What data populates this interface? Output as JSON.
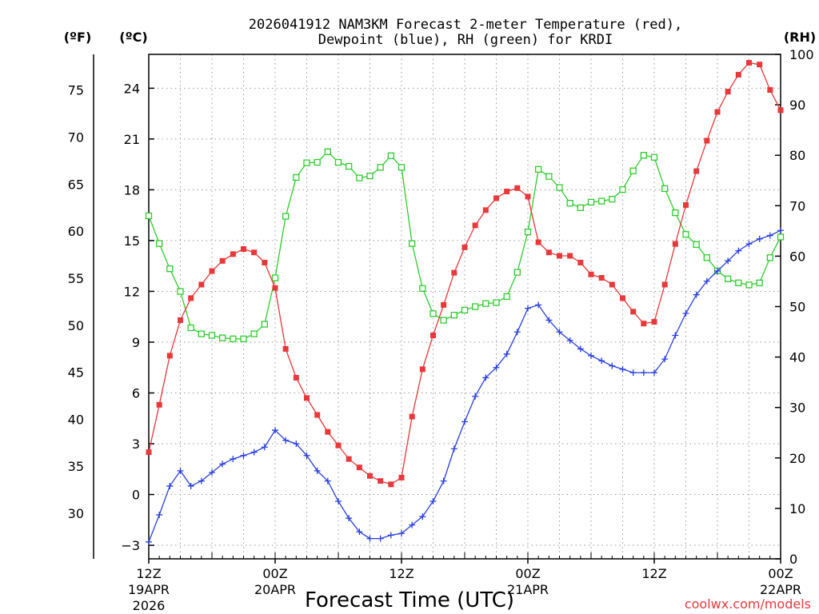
{
  "chart_data": {
    "type": "line",
    "title_line1": "2026041912 NAM3KM Forecast 2-meter Temperature (red),",
    "title_line2": "Dewpoint (blue), RH (green) for KRDI",
    "xlabel": "Forecast Time (UTC)",
    "credit": "coolwx.com/models",
    "unit_f": "(ºF)",
    "unit_c": "(ºC)",
    "unit_rh": "(RH)",
    "xlim_hours": [
      0,
      60
    ],
    "ylim_c": [
      -3.8,
      26.0
    ],
    "ylim_rh": [
      0,
      100
    ],
    "grid": true,
    "x_ticks": [
      {
        "hour": 0,
        "line1": "12Z",
        "line2": "19APR",
        "line3": "2026"
      },
      {
        "hour": 12,
        "line1": "00Z",
        "line2": "20APR",
        "line3": ""
      },
      {
        "hour": 24,
        "line1": "12Z",
        "line2": "",
        "line3": ""
      },
      {
        "hour": 36,
        "line1": "00Z",
        "line2": "21APR",
        "line3": ""
      },
      {
        "hour": 48,
        "line1": "12Z",
        "line2": "",
        "line3": ""
      },
      {
        "hour": 60,
        "line1": "00Z",
        "line2": "22APR",
        "line3": ""
      }
    ],
    "c_ticks": [
      -3,
      0,
      3,
      6,
      9,
      12,
      15,
      18,
      21,
      24
    ],
    "c_tick_labels": [
      "−3",
      "0",
      "3",
      "6",
      "9",
      "12",
      "15",
      "18",
      "21",
      "24"
    ],
    "f_ticks": [
      30,
      35,
      40,
      45,
      50,
      55,
      60,
      65,
      70,
      75
    ],
    "f_tick_labels": [
      "30",
      "35",
      "40",
      "45",
      "50",
      "55",
      "60",
      "65",
      "70",
      "75"
    ],
    "rh_ticks": [
      0,
      10,
      20,
      30,
      40,
      50,
      60,
      70,
      80,
      90,
      100
    ],
    "rh_tick_labels": [
      "0",
      "10",
      "20",
      "30",
      "40",
      "50",
      "60",
      "70",
      "80",
      "90",
      "100"
    ],
    "hours": [
      0,
      1,
      2,
      3,
      4,
      5,
      6,
      7,
      8,
      9,
      10,
      11,
      12,
      13,
      14,
      15,
      16,
      17,
      18,
      19,
      20,
      21,
      22,
      23,
      24,
      25,
      26,
      27,
      28,
      29,
      30,
      31,
      32,
      33,
      34,
      35,
      36,
      37,
      38,
      39,
      40,
      41,
      42,
      43,
      44,
      45,
      46,
      47,
      48,
      49,
      50,
      51,
      52,
      53,
      54,
      55,
      56,
      57,
      58,
      59,
      60
    ],
    "series": [
      {
        "name": "Temperature (°C)",
        "color": "#e8383a",
        "marker": "filled-square",
        "axis": "celsius",
        "values": [
          2.5,
          5.3,
          8.2,
          10.3,
          11.6,
          12.4,
          13.2,
          13.8,
          14.2,
          14.5,
          14.3,
          13.7,
          12.2,
          8.6,
          6.9,
          5.7,
          4.7,
          3.7,
          2.9,
          2.1,
          1.6,
          1.1,
          0.8,
          0.6,
          1.0,
          4.6,
          7.4,
          9.4,
          11.2,
          13.1,
          14.6,
          15.9,
          16.8,
          17.5,
          17.9,
          18.1,
          17.6,
          14.9,
          14.3,
          14.1,
          14.1,
          13.7,
          13.0,
          12.8,
          12.4,
          11.6,
          10.8,
          10.1,
          10.2,
          12.4,
          14.8,
          17.1,
          19.1,
          20.9,
          22.6,
          23.8,
          24.8,
          25.5,
          25.4,
          23.9,
          22.7
        ]
      },
      {
        "name": "Dewpoint (°C)",
        "color": "#2a3fe0",
        "marker": "plus",
        "axis": "celsius",
        "values": [
          -2.8,
          -1.2,
          0.5,
          1.4,
          0.5,
          0.8,
          1.3,
          1.8,
          2.1,
          2.3,
          2.5,
          2.8,
          3.8,
          3.2,
          3.0,
          2.3,
          1.4,
          0.8,
          -0.4,
          -1.4,
          -2.2,
          -2.6,
          -2.6,
          -2.4,
          -2.3,
          -1.8,
          -1.3,
          -0.4,
          0.8,
          2.7,
          4.3,
          5.8,
          6.9,
          7.5,
          8.3,
          9.6,
          11.0,
          11.2,
          10.3,
          9.6,
          9.1,
          8.6,
          8.2,
          7.9,
          7.6,
          7.4,
          7.2,
          7.2,
          7.2,
          8.0,
          9.4,
          10.7,
          11.8,
          12.6,
          13.2,
          13.8,
          14.4,
          14.8,
          15.1,
          15.3,
          15.6
        ]
      },
      {
        "name": "RH (%)",
        "color": "#2ecc2e",
        "marker": "open-square",
        "axis": "rh",
        "values": [
          68,
          62.5,
          57.5,
          53,
          45.8,
          44.6,
          44.3,
          43.8,
          43.6,
          43.6,
          44.6,
          46.5,
          55.7,
          67.9,
          75.6,
          78.5,
          78.6,
          80.7,
          78.6,
          77.8,
          75.5,
          75.9,
          77.6,
          79.9,
          77.6,
          62.5,
          53.6,
          48.6,
          47.3,
          48.3,
          49.3,
          50,
          50.6,
          50.8,
          52,
          56.8,
          64.8,
          77.2,
          75.8,
          73.6,
          70.5,
          69.6,
          70.7,
          70.9,
          71.3,
          73.2,
          76.9,
          80,
          79.6,
          73.4,
          68.6,
          64.3,
          62.3,
          59.7,
          57.1,
          55.5,
          54.7,
          54.3,
          54.7,
          59.7,
          63.8
        ]
      }
    ]
  }
}
